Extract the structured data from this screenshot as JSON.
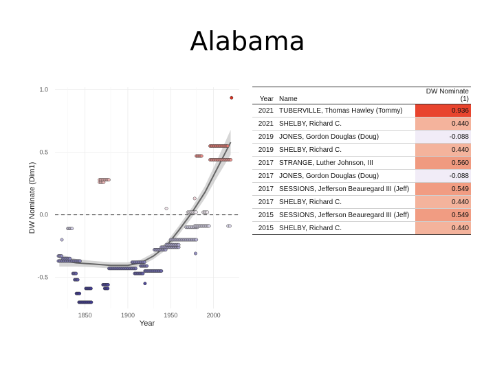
{
  "title": "Alabama",
  "chart_data": {
    "type": "scatter",
    "xlabel": "Year",
    "ylabel": "DW Nominate (Dim1)",
    "xlim": [
      1815,
      2030
    ],
    "ylim": [
      -0.75,
      1.02
    ],
    "xticks": [
      1850,
      1900,
      1950,
      2000
    ],
    "yticks": [
      -0.5,
      0.0,
      0.5,
      1.0
    ],
    "ytick_labels": [
      "-0.5",
      "0.0",
      "0.5",
      "1.0"
    ],
    "reference_line": {
      "y": 0.0,
      "style": "dashed"
    },
    "colors": {
      "low": "#3f3a8f",
      "mid": "#f4f0f8",
      "high": "#d7301f",
      "trend": "#666666",
      "band": "#c8c8c8"
    },
    "segments": [
      {
        "x0": 1819,
        "x1": 1845,
        "y": -0.37
      },
      {
        "x0": 1824,
        "x1": 1833,
        "y": -0.35
      },
      {
        "x0": 1819,
        "x1": 1823,
        "y": -0.33
      },
      {
        "x0": 1830,
        "x1": 1835,
        "y": -0.11
      },
      {
        "x0": 1836,
        "x1": 1840,
        "y": -0.47
      },
      {
        "x0": 1838,
        "x1": 1842,
        "y": -0.52
      },
      {
        "x0": 1840,
        "x1": 1844,
        "y": -0.63
      },
      {
        "x0": 1843,
        "x1": 1858,
        "y": -0.7
      },
      {
        "x0": 1851,
        "x1": 1858,
        "y": -0.59
      },
      {
        "x0": 1867,
        "x1": 1872,
        "y": 0.26
      },
      {
        "x0": 1867,
        "x1": 1878,
        "y": 0.28
      },
      {
        "x0": 1871,
        "x1": 1878,
        "y": -0.56
      },
      {
        "x0": 1873,
        "x1": 1877,
        "y": -0.59
      },
      {
        "x0": 1878,
        "x1": 1910,
        "y": -0.43
      },
      {
        "x0": 1905,
        "x1": 1920,
        "y": -0.38
      },
      {
        "x0": 1908,
        "x1": 1918,
        "y": -0.47
      },
      {
        "x0": 1915,
        "x1": 1923,
        "y": -0.41
      },
      {
        "x0": 1920,
        "x1": 1940,
        "y": -0.45
      },
      {
        "x0": 1931,
        "x1": 1945,
        "y": -0.28
      },
      {
        "x0": 1939,
        "x1": 1960,
        "y": -0.26
      },
      {
        "x0": 1945,
        "x1": 1960,
        "y": -0.24
      },
      {
        "x0": 1950,
        "x1": 1980,
        "y": -0.2
      },
      {
        "x0": 1968,
        "x1": 1982,
        "y": -0.1
      },
      {
        "x0": 1978,
        "x1": 1995,
        "y": -0.09
      },
      {
        "x0": 1970,
        "x1": 1980,
        "y": 0.02
      },
      {
        "x0": 1988,
        "x1": 1993,
        "y": 0.02
      },
      {
        "x0": 1980,
        "x1": 1986,
        "y": 0.47
      },
      {
        "x0": 1996,
        "x1": 2021,
        "y": 0.44
      },
      {
        "x0": 1996,
        "x1": 2017,
        "y": 0.55
      }
    ],
    "points": [
      {
        "x": 1823,
        "y": -0.2
      },
      {
        "x": 1945,
        "y": 0.05
      },
      {
        "x": 1978,
        "y": 0.13
      },
      {
        "x": 1979,
        "y": -0.31
      },
      {
        "x": 2017,
        "y": -0.09
      },
      {
        "x": 2019,
        "y": -0.09
      },
      {
        "x": 2021,
        "y": 0.936
      },
      {
        "x": 1920,
        "y": -0.55
      }
    ],
    "trend": {
      "x": [
        1820,
        1840,
        1860,
        1880,
        1900,
        1915,
        1930,
        1945,
        1960,
        1975,
        1990,
        2005,
        2020
      ],
      "y": [
        -0.365,
        -0.385,
        -0.395,
        -0.405,
        -0.405,
        -0.385,
        -0.33,
        -0.25,
        -0.12,
        0.02,
        0.18,
        0.38,
        0.58
      ],
      "band_halfwidth": [
        0.05,
        0.03,
        0.025,
        0.025,
        0.025,
        0.025,
        0.025,
        0.03,
        0.035,
        0.04,
        0.05,
        0.07,
        0.1
      ]
    }
  },
  "table": {
    "headers": [
      "Year",
      "Name",
      "DW Nominate (1)"
    ],
    "rows": [
      {
        "year": "2021",
        "name": "TUBERVILLE, Thomas Hawley (Tommy)",
        "dw": "0.936",
        "bg": "#e8442e",
        "fg": "#111111"
      },
      {
        "year": "2021",
        "name": "SHELBY, Richard C.",
        "dw": "0.440",
        "bg": "#f4b39c",
        "fg": "#111111"
      },
      {
        "year": "2019",
        "name": "JONES, Gordon Douglas (Doug)",
        "dw": "-0.088",
        "bg": "#f1ecf7",
        "fg": "#111111"
      },
      {
        "year": "2019",
        "name": "SHELBY, Richard C.",
        "dw": "0.440",
        "bg": "#f4b39c",
        "fg": "#111111"
      },
      {
        "year": "2017",
        "name": "STRANGE, Luther  Johnson, III",
        "dw": "0.560",
        "bg": "#f09a80",
        "fg": "#111111"
      },
      {
        "year": "2017",
        "name": "JONES, Gordon Douglas (Doug)",
        "dw": "-0.088",
        "bg": "#f1ecf7",
        "fg": "#111111"
      },
      {
        "year": "2017",
        "name": "SESSIONS, Jefferson Beauregard III (Jeff)",
        "dw": "0.549",
        "bg": "#f19c82",
        "fg": "#111111"
      },
      {
        "year": "2017",
        "name": "SHELBY, Richard C.",
        "dw": "0.440",
        "bg": "#f4b39c",
        "fg": "#111111"
      },
      {
        "year": "2015",
        "name": "SESSIONS, Jefferson Beauregard III (Jeff)",
        "dw": "0.549",
        "bg": "#f19c82",
        "fg": "#111111"
      },
      {
        "year": "2015",
        "name": "SHELBY, Richard C.",
        "dw": "0.440",
        "bg": "#f4b39c",
        "fg": "#111111"
      }
    ]
  }
}
